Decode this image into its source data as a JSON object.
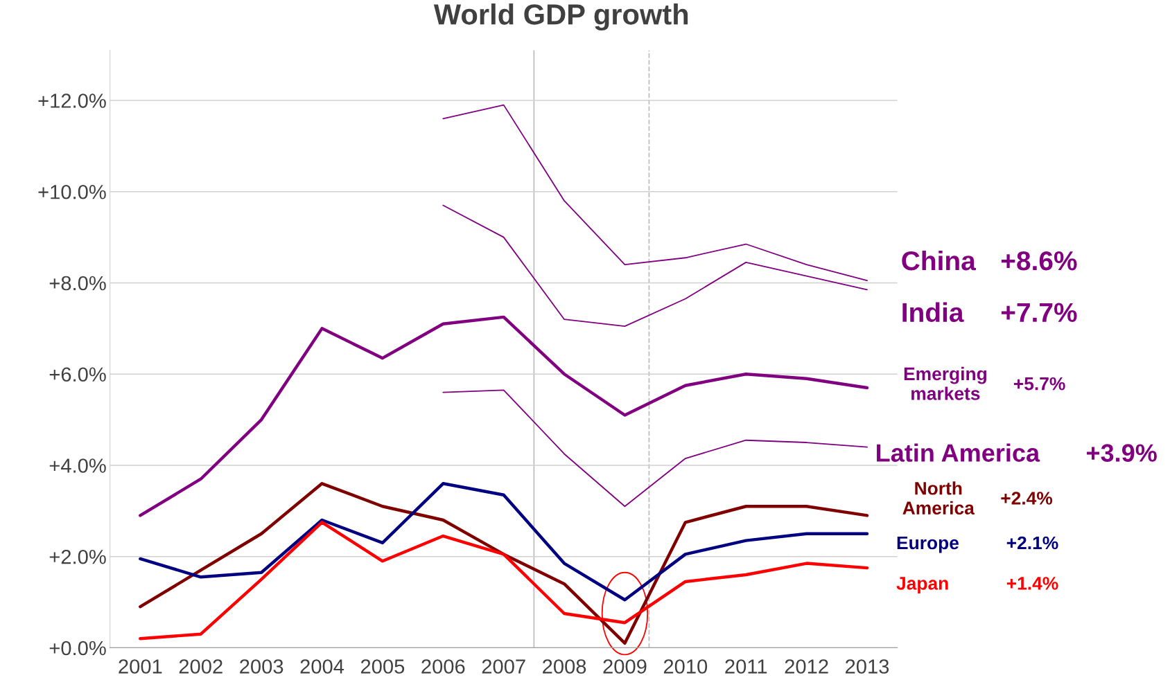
{
  "chart_data": {
    "type": "line",
    "title": "World GDP growth",
    "x": [
      2001,
      2002,
      2003,
      2004,
      2005,
      2006,
      2007,
      2008,
      2009,
      2010,
      2011,
      2012,
      2013
    ],
    "xlim": [
      2000.5,
      2013.5
    ],
    "xticks": [
      2001,
      2002,
      2003,
      2004,
      2005,
      2006,
      2007,
      2008,
      2009,
      2010,
      2011,
      2012,
      2013
    ],
    "ylim": [
      0,
      13.1
    ],
    "yticks": [
      {
        "value": 0,
        "label": "+0.0%"
      },
      {
        "value": 2,
        "label": "+2.0%"
      },
      {
        "value": 4,
        "label": "+4.0%"
      },
      {
        "value": 6,
        "label": "+6.0%"
      },
      {
        "value": 8,
        "label": "+8.0%"
      },
      {
        "value": 10,
        "label": "+10.0%"
      },
      {
        "value": 12,
        "label": "+12.0%"
      }
    ],
    "grid": "y",
    "legend": false,
    "marker": "none",
    "line_style": "solid",
    "series": [
      {
        "name": "China",
        "color": "#800080",
        "x": [
          2006,
          2007,
          2008,
          2009,
          2010,
          2011,
          2012,
          2013
        ],
        "values": [
          11.6,
          11.9,
          9.8,
          8.4,
          8.55,
          8.85,
          8.4,
          8.05
        ]
      },
      {
        "name": "India",
        "color": "#800080",
        "x": [
          2006,
          2007,
          2008,
          2009,
          2010,
          2011,
          2012,
          2013
        ],
        "values": [
          9.7,
          9.0,
          7.2,
          7.05,
          7.65,
          8.45,
          8.15,
          7.85
        ]
      },
      {
        "name": "Emerging markets",
        "color": "#800080",
        "values": [
          2.9,
          3.7,
          5.0,
          7.0,
          6.35,
          7.1,
          7.25,
          6.0,
          5.1,
          5.75,
          6.0,
          5.9,
          5.7
        ]
      },
      {
        "name": "Latin America",
        "color": "#800080",
        "x": [
          2006,
          2007,
          2008,
          2009,
          2010,
          2011,
          2012,
          2013
        ],
        "values": [
          5.6,
          5.65,
          4.25,
          3.1,
          4.15,
          4.55,
          4.5,
          4.4
        ]
      },
      {
        "name": "North America",
        "color": "#800000",
        "values": [
          0.9,
          1.7,
          2.5,
          3.6,
          3.1,
          2.8,
          2.05,
          1.4,
          0.1,
          2.75,
          3.1,
          3.1,
          2.9
        ]
      },
      {
        "name": "Europe",
        "color": "#000080",
        "values": [
          1.95,
          1.55,
          1.65,
          2.8,
          2.3,
          3.6,
          3.35,
          1.85,
          1.05,
          2.05,
          2.35,
          2.5,
          2.5
        ]
      },
      {
        "name": "Japan",
        "color": "#ff0000",
        "values": [
          0.2,
          0.3,
          1.5,
          2.75,
          1.9,
          2.45,
          2.05,
          0.75,
          0.55,
          1.45,
          1.6,
          1.85,
          1.75
        ]
      }
    ],
    "annotations": [
      "+8.6%",
      "+7.7%",
      "+5.7%",
      "+3.9%",
      "+2.4%",
      "+2.1%",
      "+1.4%"
    ],
    "ref_lines": [
      {
        "axis": "x",
        "value": 2007.5,
        "color": "#bfbfbf",
        "line_style": "solid"
      },
      {
        "axis": "x",
        "value": 2009.4,
        "color": "#bfbfbf",
        "line_style": "dashed"
      }
    ]
  }
}
